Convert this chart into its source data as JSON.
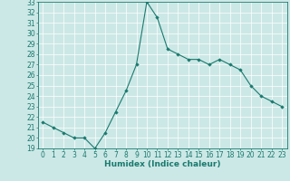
{
  "x": [
    0,
    1,
    2,
    3,
    4,
    5,
    6,
    7,
    8,
    9,
    10,
    11,
    12,
    13,
    14,
    15,
    16,
    17,
    18,
    19,
    20,
    21,
    22,
    23
  ],
  "y": [
    21.5,
    21.0,
    20.5,
    20.0,
    20.0,
    19.0,
    20.5,
    22.5,
    24.5,
    27.0,
    33.0,
    31.5,
    28.5,
    28.0,
    27.5,
    27.5,
    27.0,
    27.5,
    27.0,
    26.5,
    25.0,
    24.0,
    23.5,
    23.0
  ],
  "line_color": "#1a7a6e",
  "marker": "D",
  "marker_size": 1.8,
  "bg_color": "#cce8e6",
  "grid_color": "#ffffff",
  "xlabel": "Humidex (Indice chaleur)",
  "ylim": [
    19,
    33
  ],
  "xlim_min": -0.5,
  "xlim_max": 23.5,
  "yticks": [
    19,
    20,
    21,
    22,
    23,
    24,
    25,
    26,
    27,
    28,
    29,
    30,
    31,
    32,
    33
  ],
  "xticks": [
    0,
    1,
    2,
    3,
    4,
    5,
    6,
    7,
    8,
    9,
    10,
    11,
    12,
    13,
    14,
    15,
    16,
    17,
    18,
    19,
    20,
    21,
    22,
    23
  ],
  "xlabel_fontsize": 6.5,
  "tick_fontsize": 5.5,
  "linewidth": 0.8
}
